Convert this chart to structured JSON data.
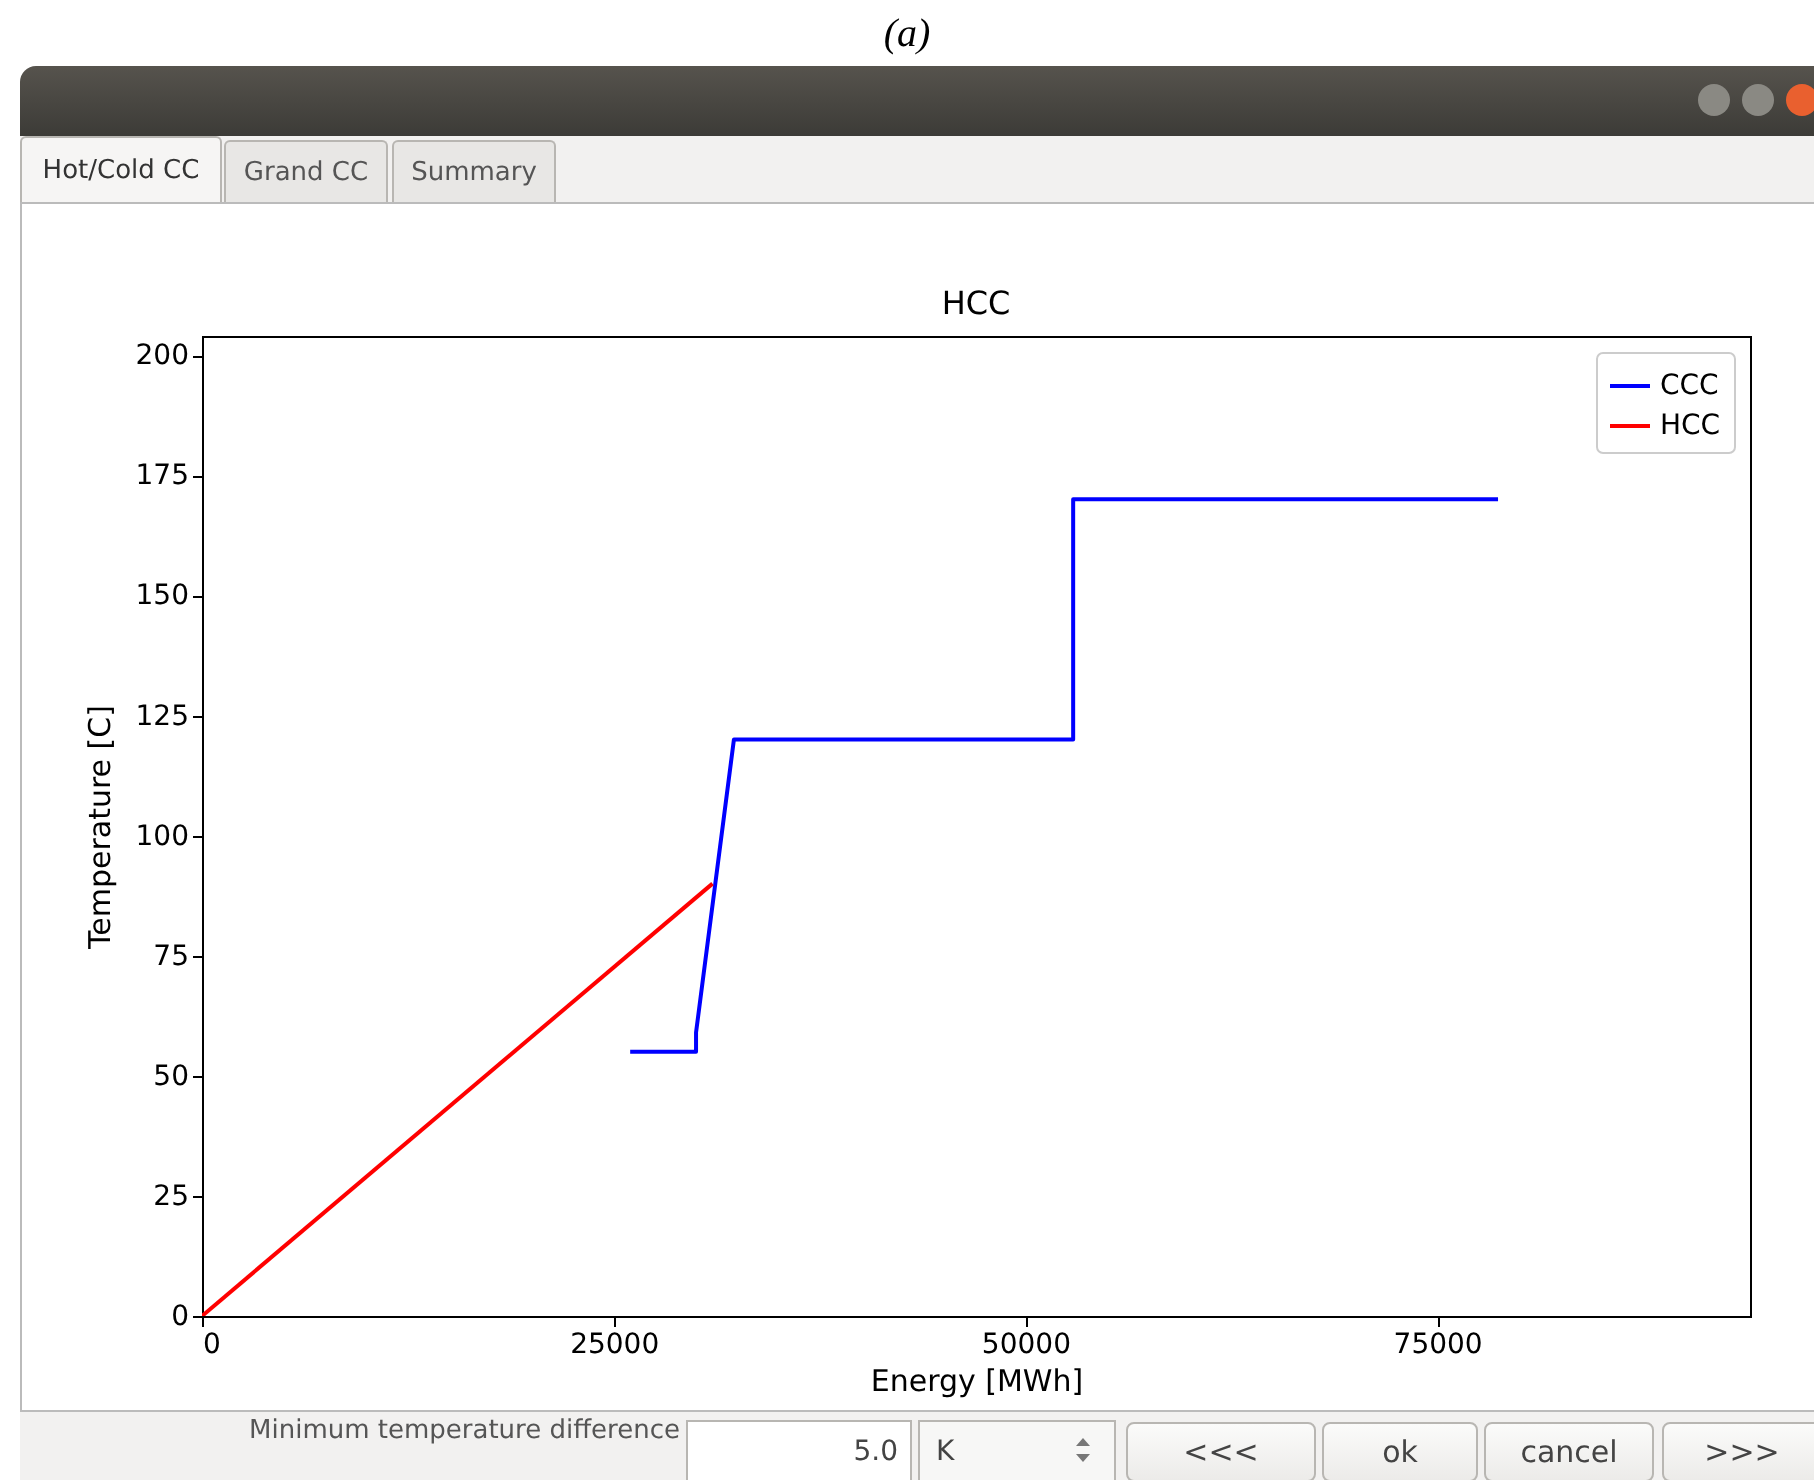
{
  "chart_data": {
    "type": "line",
    "title": "HCC",
    "xlabel": "Energy [MWh]",
    "ylabel": "Temperature [C]",
    "xlim": [
      0,
      94000
    ],
    "xticks": [
      0,
      25000,
      50000,
      75000
    ],
    "ylim": [
      0,
      204
    ],
    "yticks": [
      0,
      25,
      50,
      75,
      100,
      125,
      150,
      175,
      200
    ],
    "series": [
      {
        "name": "CCC",
        "color": "#0000ff",
        "x": [
          26000,
          30000,
          30000,
          32300,
          52900,
          52900,
          78700
        ],
        "values": [
          55,
          55,
          59,
          120,
          120,
          170,
          170
        ]
      },
      {
        "name": "HCC",
        "color": "#ff0000",
        "x": [
          0,
          31000
        ],
        "values": [
          0,
          90
        ]
      }
    ],
    "legend": "top right",
    "grid": false,
    "marker": "none",
    "line_style": "solid",
    "annotations": [
      "(a)",
      "Hot/Cold CC",
      "Grand CC",
      "Summary",
      "Minimum temperature difference",
      "5.0",
      "K",
      "<<<",
      "ok",
      "cancel",
      ">>>"
    ]
  }
}
